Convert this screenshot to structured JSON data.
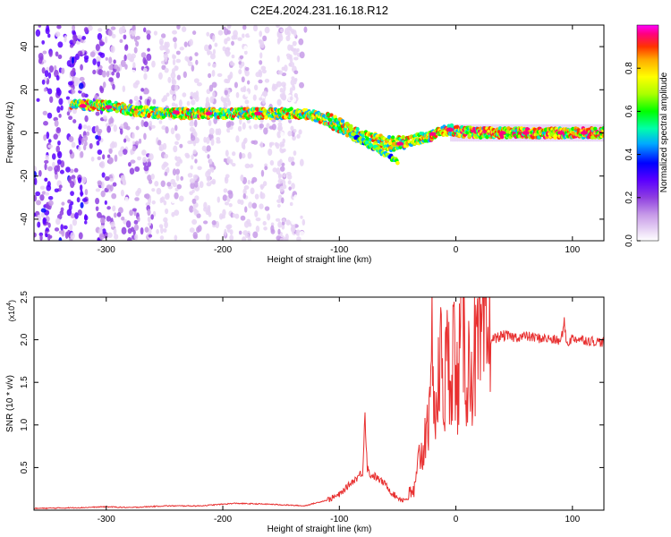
{
  "figure": {
    "title": "C2E4.2024.231.16.18.R12"
  },
  "chart_data": [
    {
      "type": "heatmap",
      "xlabel": "Height of straight line (km)",
      "ylabel": "Frequency (Hz)",
      "xlim": [
        -362,
        127
      ],
      "ylim": [
        -50,
        50
      ],
      "xticks": [
        -300,
        -200,
        -100,
        0,
        100
      ],
      "yticks": [
        -40,
        -20,
        0,
        20,
        40
      ],
      "ridge": {
        "x": [
          -330,
          -300,
          -270,
          -250,
          -220,
          -190,
          -165,
          -140,
          -125,
          -110,
          -95,
          -85,
          -75,
          -65,
          -55,
          -50,
          -45,
          -35,
          -25,
          -15,
          -5,
          5,
          20,
          40,
          60,
          80,
          100,
          127
        ],
        "y": [
          13,
          12.5,
          10,
          9,
          9,
          9,
          9,
          9,
          8.5,
          6,
          2.5,
          -1,
          -3,
          -4,
          -5,
          -5,
          -5,
          -3,
          -2,
          0,
          1.5,
          0.5,
          0,
          0,
          0,
          0,
          0,
          0
        ]
      },
      "colorbar": {
        "label": "Normalized spectral amplitude",
        "ticks": [
          0.0,
          0.2,
          0.4,
          0.6,
          0.8
        ],
        "tick_labels": [
          "0.0",
          "0.2",
          "0.4",
          "0.6",
          "0.8"
        ],
        "range": [
          0,
          1
        ],
        "colormap": [
          "#ffffff",
          "#e8d5f5",
          "#c79be8",
          "#8f3fe0",
          "#5b00ff",
          "#0000ff",
          "#00aaff",
          "#00ffaa",
          "#00ff00",
          "#aaff00",
          "#ffff00",
          "#ffaa00",
          "#ff3300",
          "#ff0080",
          "#ff00ff"
        ]
      }
    },
    {
      "type": "line",
      "xlabel": "Height of straight line (km)",
      "ylabel": "SNR (10 * v/v)",
      "scale_label": "(x10",
      "scale_exp": "4",
      "scale_close": ")",
      "xlim": [
        -362,
        127
      ],
      "ylim": [
        0,
        2.5
      ],
      "xticks": [
        -300,
        -200,
        -100,
        0,
        100
      ],
      "yticks": [
        0.5,
        1.0,
        1.5,
        2.0,
        2.5
      ],
      "ytick_labels": [
        "0.5",
        "1.0",
        "1.5",
        "2.0",
        "2.5"
      ],
      "color": "#e83030",
      "series": [
        {
          "x": [
            -362,
            -320,
            -300,
            -280,
            -250,
            -220,
            -190,
            -160,
            -130,
            -110,
            -100,
            -95,
            -90,
            -85,
            -80,
            -78,
            -76,
            -74,
            -70,
            -65,
            -60,
            -55,
            -50,
            -45,
            -40,
            -35,
            -32,
            -30,
            -28,
            -25,
            -22,
            -20,
            -18,
            -15,
            -12,
            -10,
            -8,
            -5,
            -2,
            0,
            3,
            5,
            8,
            10,
            15,
            20,
            25,
            30,
            40,
            50,
            60,
            70,
            80,
            90,
            93,
            95,
            100,
            110,
            120,
            127
          ],
          "y": [
            0.02,
            0.03,
            0.04,
            0.03,
            0.05,
            0.05,
            0.08,
            0.07,
            0.05,
            0.12,
            0.18,
            0.25,
            0.32,
            0.38,
            0.45,
            1.15,
            0.5,
            0.42,
            0.4,
            0.35,
            0.3,
            0.2,
            0.15,
            0.12,
            0.15,
            0.25,
            0.55,
            0.75,
            0.6,
            1.25,
            0.95,
            2.3,
            1.0,
            1.45,
            1.9,
            1.3,
            1.75,
            1.6,
            2.05,
            1.35,
            1.7,
            2.5,
            1.75,
            1.65,
            1.75,
            1.85,
            1.95,
            2.0,
            2.05,
            2.03,
            2.04,
            2.02,
            2.01,
            1.98,
            2.2,
            1.95,
            2.02,
            2.0,
            1.98,
            1.97
          ]
        }
      ]
    }
  ]
}
